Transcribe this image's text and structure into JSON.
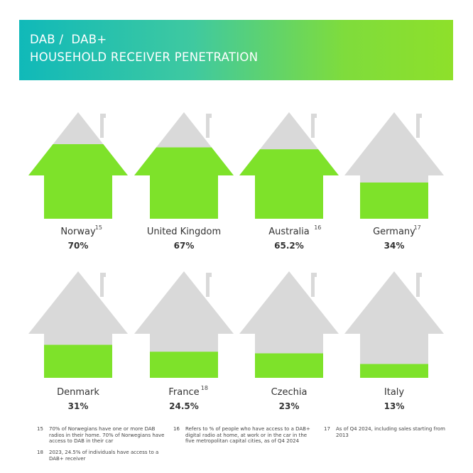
{
  "header": {
    "line1": "DAB /  DAB+",
    "line2": "HOUSEHOLD RECEIVER PENETRATION"
  },
  "colors": {
    "fill": "#7ee22a",
    "house": "#d9d9d9",
    "header_from": "#10b9b9",
    "header_to": "#8ee02a"
  },
  "chart_data": {
    "type": "bar",
    "title": "DAB / DAB+ HOUSEHOLD RECEIVER PENETRATION",
    "unit": "%",
    "ylim": [
      0,
      100
    ],
    "categories": [
      "Norway",
      "United Kingdom",
      "Australia",
      "Germany",
      "Denmark",
      "France",
      "Czechia",
      "Italy"
    ],
    "footnote_refs": [
      "15",
      "",
      "16",
      "17",
      "",
      "18",
      "",
      ""
    ],
    "values": [
      70,
      67,
      65.2,
      34,
      31,
      24.5,
      23,
      13
    ],
    "value_labels": [
      "70%",
      "67%",
      "65.2%",
      "34%",
      "31%",
      "24.5%",
      "23%",
      "13%"
    ]
  },
  "footnotes": [
    {
      "num": "15",
      "text": "70% of Norwegians have one or more DAB radios in their home. 70% of Norwegians have access to DAB in their car"
    },
    {
      "num": "16",
      "text": "Refers to % of people who have access to a DAB+ digital radio at home, at work or in the car in the five metropolitan capital cities, as of Q4 2024"
    },
    {
      "num": "17",
      "text": "As of Q4 2024,  including sales starting from 2013"
    },
    {
      "num": "18",
      "text": "2023, 24.5% of individuals have access to a DAB+ receiver"
    }
  ]
}
